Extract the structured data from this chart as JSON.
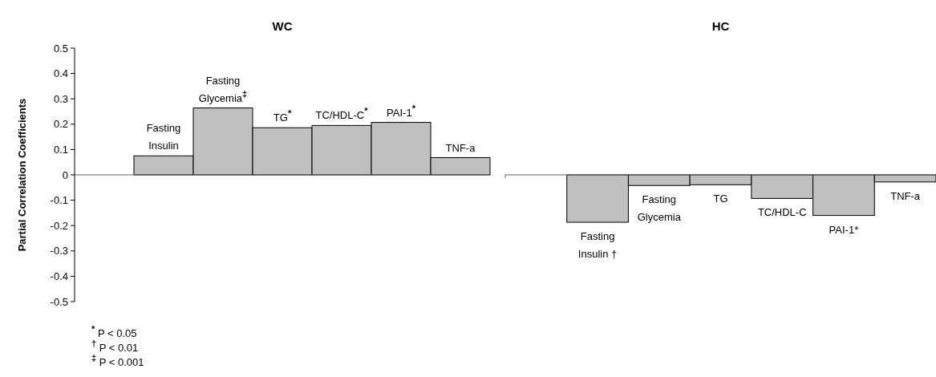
{
  "chart_data": [
    {
      "type": "bar",
      "title": "WC",
      "ylabel": "Partial Correlation Coefficients",
      "categories": [
        null,
        "Fasting Insulin",
        "Fasting Glycemia$^{‡}$",
        "TG$^{*}$",
        "TC/HDL-C$^{*}$",
        "PAI-1$^{*}$",
        "TNF-a"
      ],
      "values": [
        null,
        0.075,
        0.264,
        0.186,
        0.195,
        0.207,
        0.068
      ],
      "color": "#c0c0c0",
      "ylim": [
        -0.5,
        0.5
      ],
      "yticks": [
        -0.5,
        -0.4,
        -0.3,
        -0.2,
        -0.1,
        0,
        0.1,
        0.2,
        0.3,
        0.4,
        0.5
      ],
      "grid": false,
      "annotations": [
        "$^{*}$ P < 0.05",
        "$^{†}$ P < 0.01",
        "$^{‡}$ P < 0.001"
      ]
    },
    {
      "type": "bar",
      "title": "HC",
      "categories": [
        null,
        "Fasting Insulin †",
        "Fasting Glycemia",
        "TG",
        "TC/HDL-C",
        "PAI-1*",
        "TNF-a"
      ],
      "values": [
        null,
        -0.187,
        -0.042,
        -0.039,
        -0.093,
        -0.16,
        -0.028
      ],
      "color": "#c0c0c0",
      "ylim": [
        -0.5,
        0.5
      ],
      "tick_labels": "x",
      "grid": false
    }
  ]
}
